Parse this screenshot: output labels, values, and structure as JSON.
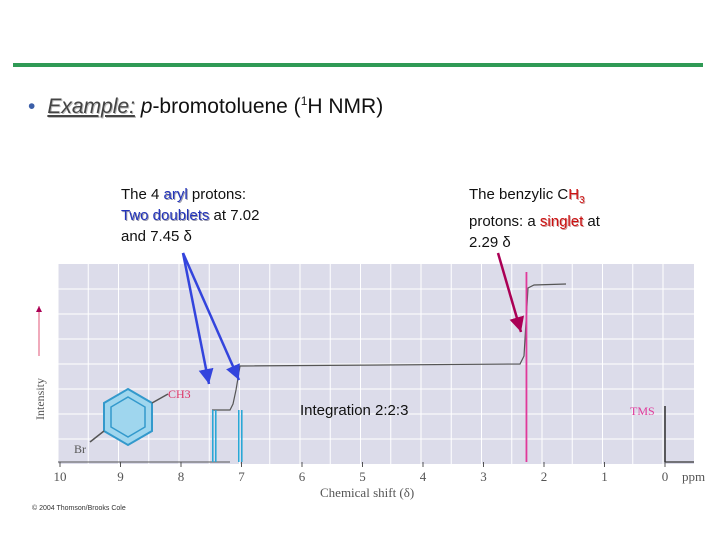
{
  "slide": {
    "bullet": "•",
    "example_label": "Example:",
    "compound_prefix": "p",
    "compound_rest": "-bromotoluene (",
    "nmr_sup": "1",
    "nmr_rest": "H NMR)"
  },
  "aryl_note": {
    "l1a": "The 4 ",
    "l1b": "aryl",
    "l1c": " protons:",
    "l2a": "Two doublets",
    "l2b": " at 7.02",
    "l3": "and 7.45 δ"
  },
  "benzylic_note": {
    "l1a": "The benzylic C",
    "l1b": "H",
    "l1sub": "3",
    "l2a": "protons: a ",
    "l2b": "singlet",
    "l2c": " at",
    "l3": "2.29 δ"
  },
  "integration_text": "Integration 2:2:3",
  "copyright": "© 2004 Thomson/Brooks Cole",
  "spectrum": {
    "y_label": "Intensity",
    "x_label": "Chemical shift (δ)",
    "unit": "ppm",
    "ticks": [
      "10",
      "9",
      "8",
      "7",
      "6",
      "5",
      "4",
      "3",
      "2",
      "1",
      "0"
    ],
    "tms_label": "TMS",
    "ch3_label": "CH3",
    "br_label": "Br",
    "colors": {
      "aryl_peak": "#2aa7d6",
      "methyl_peak": "#e0399a",
      "tms_peak": "#222222",
      "panel": "#dcdcea",
      "grid": "#ffffff",
      "aryl_arrow": "#3344dd",
      "methyl_arrow": "#aa0055"
    }
  },
  "chart_data": {
    "type": "line",
    "xlabel": "Chemical shift (δ)",
    "ylabel": "Intensity",
    "xlim": [
      10,
      0
    ],
    "peaks": [
      {
        "shift": 7.45,
        "group": "aryl",
        "multiplicity": "doublet"
      },
      {
        "shift": 7.02,
        "group": "aryl",
        "multiplicity": "doublet"
      },
      {
        "shift": 2.29,
        "group": "CH3",
        "multiplicity": "singlet"
      },
      {
        "shift": 0.0,
        "group": "TMS"
      }
    ],
    "integration": [
      2,
      2,
      3
    ]
  }
}
